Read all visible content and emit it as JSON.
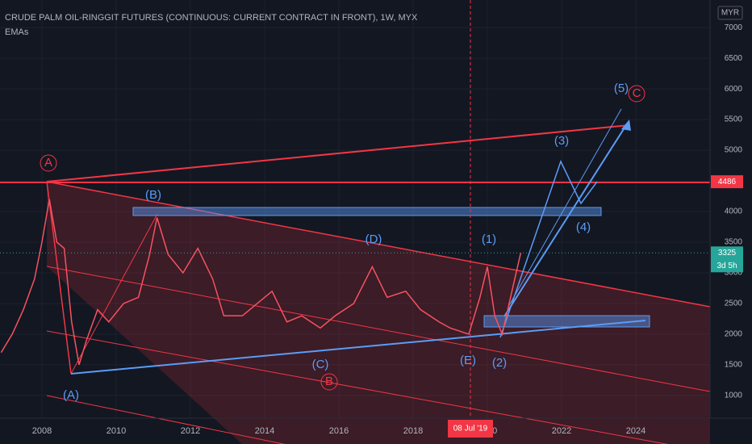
{
  "chart_data": {
    "type": "line",
    "title": "CRUDE PALM OIL-RINGGIT FUTURES (CONTINUOUS: CURRENT CONTRACT IN FRONT), 1W, MYX",
    "subtitle": "EMAs",
    "currency": "MYR",
    "x": [
      2006.9,
      2007.2,
      2007.5,
      2007.8,
      2008.0,
      2008.2,
      2008.4,
      2008.6,
      2008.8,
      2009.0,
      2009.2,
      2009.5,
      2009.8,
      2010.2,
      2010.6,
      2010.9,
      2011.1,
      2011.4,
      2011.8,
      2012.2,
      2012.6,
      2012.9,
      2013.4,
      2013.8,
      2014.2,
      2014.6,
      2015.0,
      2015.5,
      2015.9,
      2016.4,
      2016.9,
      2017.3,
      2017.8,
      2018.2,
      2018.7,
      2019.0,
      2019.5,
      2019.8,
      2020.0,
      2020.2,
      2020.4,
      2020.7,
      2020.9
    ],
    "series": [
      {
        "name": "Price",
        "color": "#f7525f",
        "values": [
          1700,
          2000,
          2400,
          2900,
          3500,
          4200,
          3500,
          3400,
          2200,
          1500,
          1900,
          2400,
          2200,
          2500,
          2600,
          3300,
          3900,
          3300,
          3000,
          3400,
          2900,
          2300,
          2300,
          2500,
          2700,
          2200,
          2300,
          2100,
          2300,
          2500,
          3100,
          2600,
          2700,
          2400,
          2200,
          2100,
          2000,
          2600,
          3100,
          2300,
          2000,
          2800,
          3325
        ]
      }
    ],
    "xlim": [
      2006.87,
      2026.0
    ],
    "ylim": [
      630,
      7450
    ],
    "xticks": [
      2008,
      2010,
      2012,
      2014,
      2016,
      2018,
      2020,
      2022,
      2024
    ],
    "yticks": [
      1000,
      1500,
      2000,
      2500,
      3000,
      3500,
      4000,
      4500,
      5000,
      5500,
      6000,
      6500,
      7000
    ],
    "price_line": 4486,
    "last_price": 3325,
    "countdown": "3d 5h",
    "crosshair_date": "08 Jul '19",
    "wave_labels": [
      {
        "text": "A",
        "color": "#f23645"
      },
      {
        "text": "(A)",
        "color": "#5b9cf6"
      },
      {
        "text": "(B)",
        "color": "#5b9cf6"
      },
      {
        "text": "B",
        "color": "#f23645"
      },
      {
        "text": "(C)",
        "color": "#5b9cf6"
      },
      {
        "text": "(D)",
        "color": "#5b9cf6"
      },
      {
        "text": "(E)",
        "color": "#5b9cf6"
      },
      {
        "text": "(1)",
        "color": "#5b9cf6"
      },
      {
        "text": "(2)",
        "color": "#5b9cf6"
      },
      {
        "text": "(3)",
        "color": "#5b9cf6"
      },
      {
        "text": "(4)",
        "color": "#5b9cf6"
      },
      {
        "text": "(5)",
        "color": "#5b9cf6"
      },
      {
        "text": "C",
        "color": "#f23645"
      }
    ]
  }
}
